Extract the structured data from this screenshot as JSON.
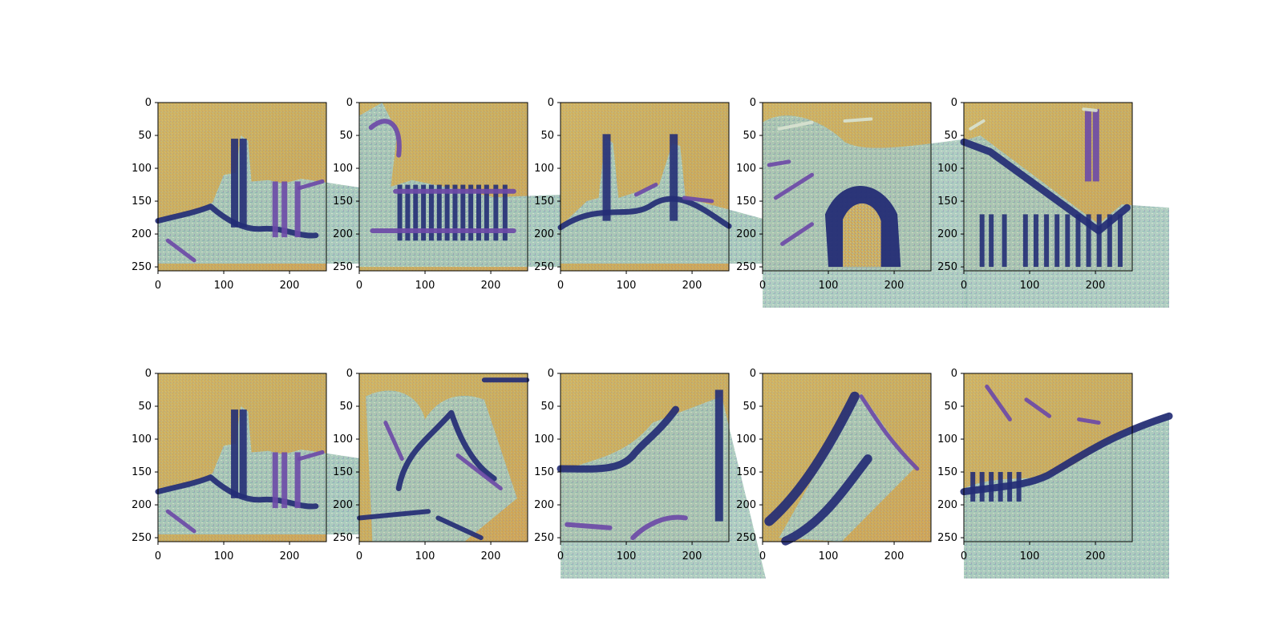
{
  "figure": {
    "background": "#ffffff"
  },
  "chart_data": {
    "type": "image-grid",
    "rows": 2,
    "cols": 5,
    "xlim": [
      0,
      256
    ],
    "ylim": [
      256,
      0
    ],
    "x_ticks": [
      0,
      100,
      200
    ],
    "y_ticks": [
      0,
      50,
      100,
      150,
      200,
      250
    ],
    "x_tick_labels": [
      "0",
      "100",
      "200"
    ],
    "y_tick_labels": [
      "0",
      "50",
      "100",
      "150",
      "200",
      "250"
    ],
    "grid": false,
    "title": "",
    "xlabel": "",
    "ylabel": "",
    "palette": {
      "background_yellow": "#c9a957",
      "background_yellow_light": "#d4b96a",
      "background_orange": "#d19a4a",
      "texture_teal": "#9ec3b4",
      "stroke_dark_blue": "#242d75",
      "stroke_purple": "#6c4aa7",
      "stroke_light": "#d8e2d0"
    },
    "panels": [
      {
        "row": 0,
        "col": 0,
        "content": "skyline with two towers near x=120 and x=185, base around y=180-200"
      },
      {
        "row": 0,
        "col": 1,
        "content": "left building and stripe pattern around x=50-220, y=120-210"
      },
      {
        "row": 0,
        "col": 2,
        "content": "city skyline with towers near x=75 and x=170"
      },
      {
        "row": 0,
        "col": 3,
        "content": "dense arched structure in lower center, light strokes upper left"
      },
      {
        "row": 0,
        "col": 4,
        "content": "diagonal roof line and vertical bars, tower near x=190"
      },
      {
        "row": 1,
        "col": 0,
        "content": "duplicate skyline image"
      },
      {
        "row": 1,
        "col": 1,
        "content": "leafy figure/object in center with horizontal line at y=210"
      },
      {
        "row": 1,
        "col": 2,
        "content": "curved dark line across lower half, vertical post at right"
      },
      {
        "row": 1,
        "col": 3,
        "content": "two diagonal dark bands from lower left to upper right"
      },
      {
        "row": 1,
        "col": 4,
        "content": "curved dark contour across middle, textured lower region"
      }
    ]
  }
}
